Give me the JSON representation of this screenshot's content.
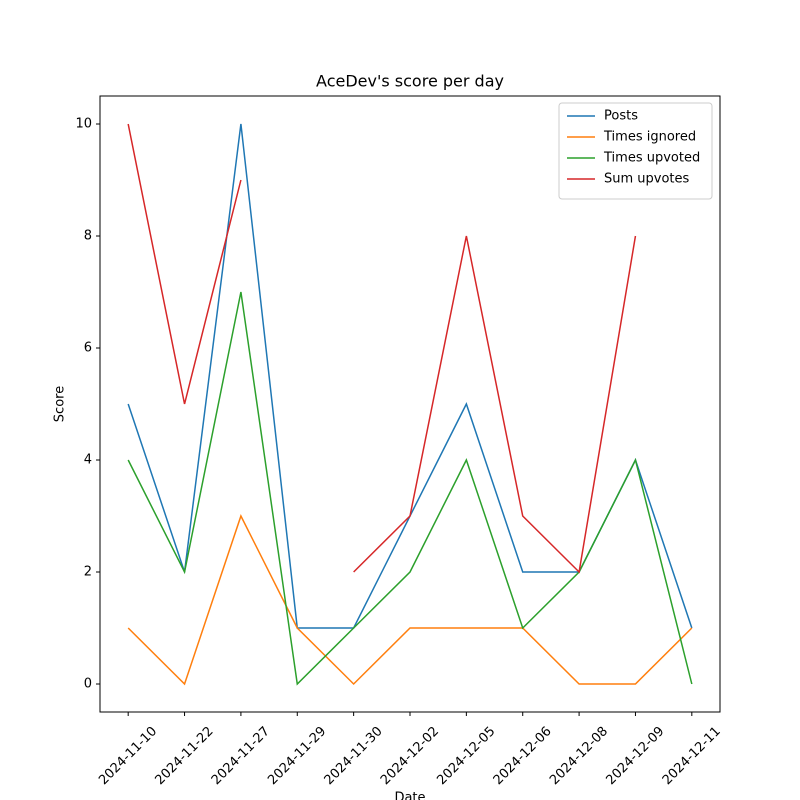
{
  "chart_data": {
    "type": "line",
    "title": "AceDev's score per day",
    "xlabel": "Date",
    "ylabel": "Score",
    "categories": [
      "2024-11-10",
      "2024-11-22",
      "2024-11-27",
      "2024-11-29",
      "2024-11-30",
      "2024-12-02",
      "2024-12-05",
      "2024-12-06",
      "2024-12-08",
      "2024-12-09",
      "2024-12-11"
    ],
    "series": [
      {
        "name": "Posts",
        "color": "#1f77b4",
        "values": [
          5,
          2,
          10,
          1,
          1,
          3,
          5,
          2,
          2,
          4,
          1
        ]
      },
      {
        "name": "Times ignored",
        "color": "#ff7f0e",
        "values": [
          1,
          0,
          3,
          1,
          0,
          1,
          1,
          1,
          0,
          0,
          1
        ]
      },
      {
        "name": "Times upvoted",
        "color": "#2ca02c",
        "values": [
          4,
          2,
          7,
          0,
          1,
          2,
          4,
          1,
          2,
          4,
          0
        ]
      },
      {
        "name": "Sum upvotes",
        "color": "#d62728",
        "values": [
          10,
          5,
          9,
          null,
          2,
          3,
          8,
          3,
          2,
          8,
          null
        ]
      }
    ],
    "ylim": [
      -0.5,
      10.5
    ],
    "yticks": [
      0,
      2,
      4,
      6,
      8,
      10
    ],
    "legend": "upper right"
  }
}
